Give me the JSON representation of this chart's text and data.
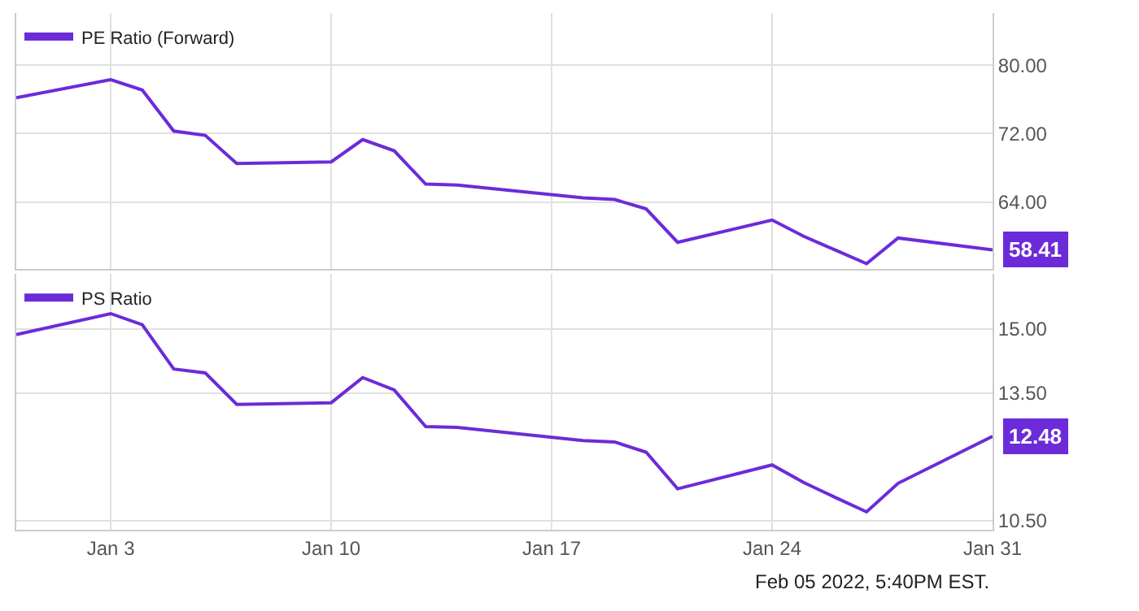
{
  "chart_data": [
    {
      "type": "line",
      "x": [
        "2021-12-31",
        "2022-01-03",
        "2022-01-04",
        "2022-01-05",
        "2022-01-06",
        "2022-01-07",
        "2022-01-10",
        "2022-01-11",
        "2022-01-12",
        "2022-01-13",
        "2022-01-14",
        "2022-01-18",
        "2022-01-19",
        "2022-01-20",
        "2022-01-21",
        "2022-01-24",
        "2022-01-25",
        "2022-01-26",
        "2022-01-27",
        "2022-01-28",
        "2022-01-31"
      ],
      "series": [
        {
          "name": "PE Ratio (Forward)",
          "color": "#6c2bd9",
          "values": [
            76.2,
            78.3,
            77.1,
            72.3,
            71.8,
            68.5,
            68.7,
            71.3,
            70.0,
            66.1,
            66.0,
            64.5,
            64.3,
            63.2,
            59.3,
            61.9,
            60.0,
            58.4,
            56.8,
            59.8,
            58.41
          ],
          "value_labels": [
            null,
            null,
            null,
            null,
            null,
            null,
            null,
            null,
            null,
            null,
            null,
            null,
            null,
            null,
            null,
            null,
            null,
            null,
            null,
            null,
            "58.41"
          ]
        }
      ],
      "xlim": [
        "2021-12-31",
        "2022-01-31"
      ],
      "ylim": [
        56.2,
        86.1
      ],
      "yticks": [
        {
          "value": 64,
          "label": "64.00"
        },
        {
          "value": 72,
          "label": "72.00"
        },
        {
          "value": 80,
          "label": "80.00"
        }
      ],
      "xticks": [
        {
          "value": "2022-01-03",
          "label": null
        },
        {
          "value": "2022-01-10",
          "label": null
        },
        {
          "value": "2022-01-17",
          "label": null
        },
        {
          "value": "2022-01-24",
          "label": null
        },
        {
          "value": "2022-01-31",
          "label": null
        }
      ],
      "tick_labels": "y",
      "grid": true,
      "legend": "top left"
    },
    {
      "type": "line",
      "x": [
        "2021-12-31",
        "2022-01-03",
        "2022-01-04",
        "2022-01-05",
        "2022-01-06",
        "2022-01-07",
        "2022-01-10",
        "2022-01-11",
        "2022-01-12",
        "2022-01-13",
        "2022-01-14",
        "2022-01-18",
        "2022-01-19",
        "2022-01-20",
        "2022-01-21",
        "2022-01-24",
        "2022-01-25",
        "2022-01-26",
        "2022-01-27",
        "2022-01-28",
        "2022-01-31"
      ],
      "series": [
        {
          "name": "PS Ratio",
          "color": "#6c2bd9",
          "values": [
            14.87,
            15.36,
            15.1,
            14.06,
            13.97,
            13.23,
            13.27,
            13.86,
            13.57,
            12.71,
            12.69,
            12.38,
            12.35,
            12.11,
            11.25,
            11.81,
            11.4,
            11.05,
            10.71,
            11.38,
            12.48
          ],
          "value_labels": [
            null,
            null,
            null,
            null,
            null,
            null,
            null,
            null,
            null,
            null,
            null,
            null,
            null,
            null,
            null,
            null,
            null,
            null,
            null,
            null,
            "12.48"
          ]
        }
      ],
      "xlim": [
        "2021-12-31",
        "2022-01-31"
      ],
      "ylim": [
        10.29,
        16.29
      ],
      "yticks": [
        {
          "value": 10.5,
          "label": "10.50"
        },
        {
          "value": 13.5,
          "label": "13.50"
        },
        {
          "value": 15,
          "label": "15.00"
        }
      ],
      "xticks": [
        {
          "value": "2022-01-03",
          "label": "Jan 3"
        },
        {
          "value": "2022-01-10",
          "label": "Jan 10"
        },
        {
          "value": "2022-01-17",
          "label": "Jan 17"
        },
        {
          "value": "2022-01-24",
          "label": "Jan 24"
        },
        {
          "value": "2022-01-31",
          "label": "Jan 31"
        }
      ],
      "grid": true,
      "legend": "top left",
      "annotations": [
        "Feb 05 2022, 5:40PM EST."
      ]
    }
  ]
}
